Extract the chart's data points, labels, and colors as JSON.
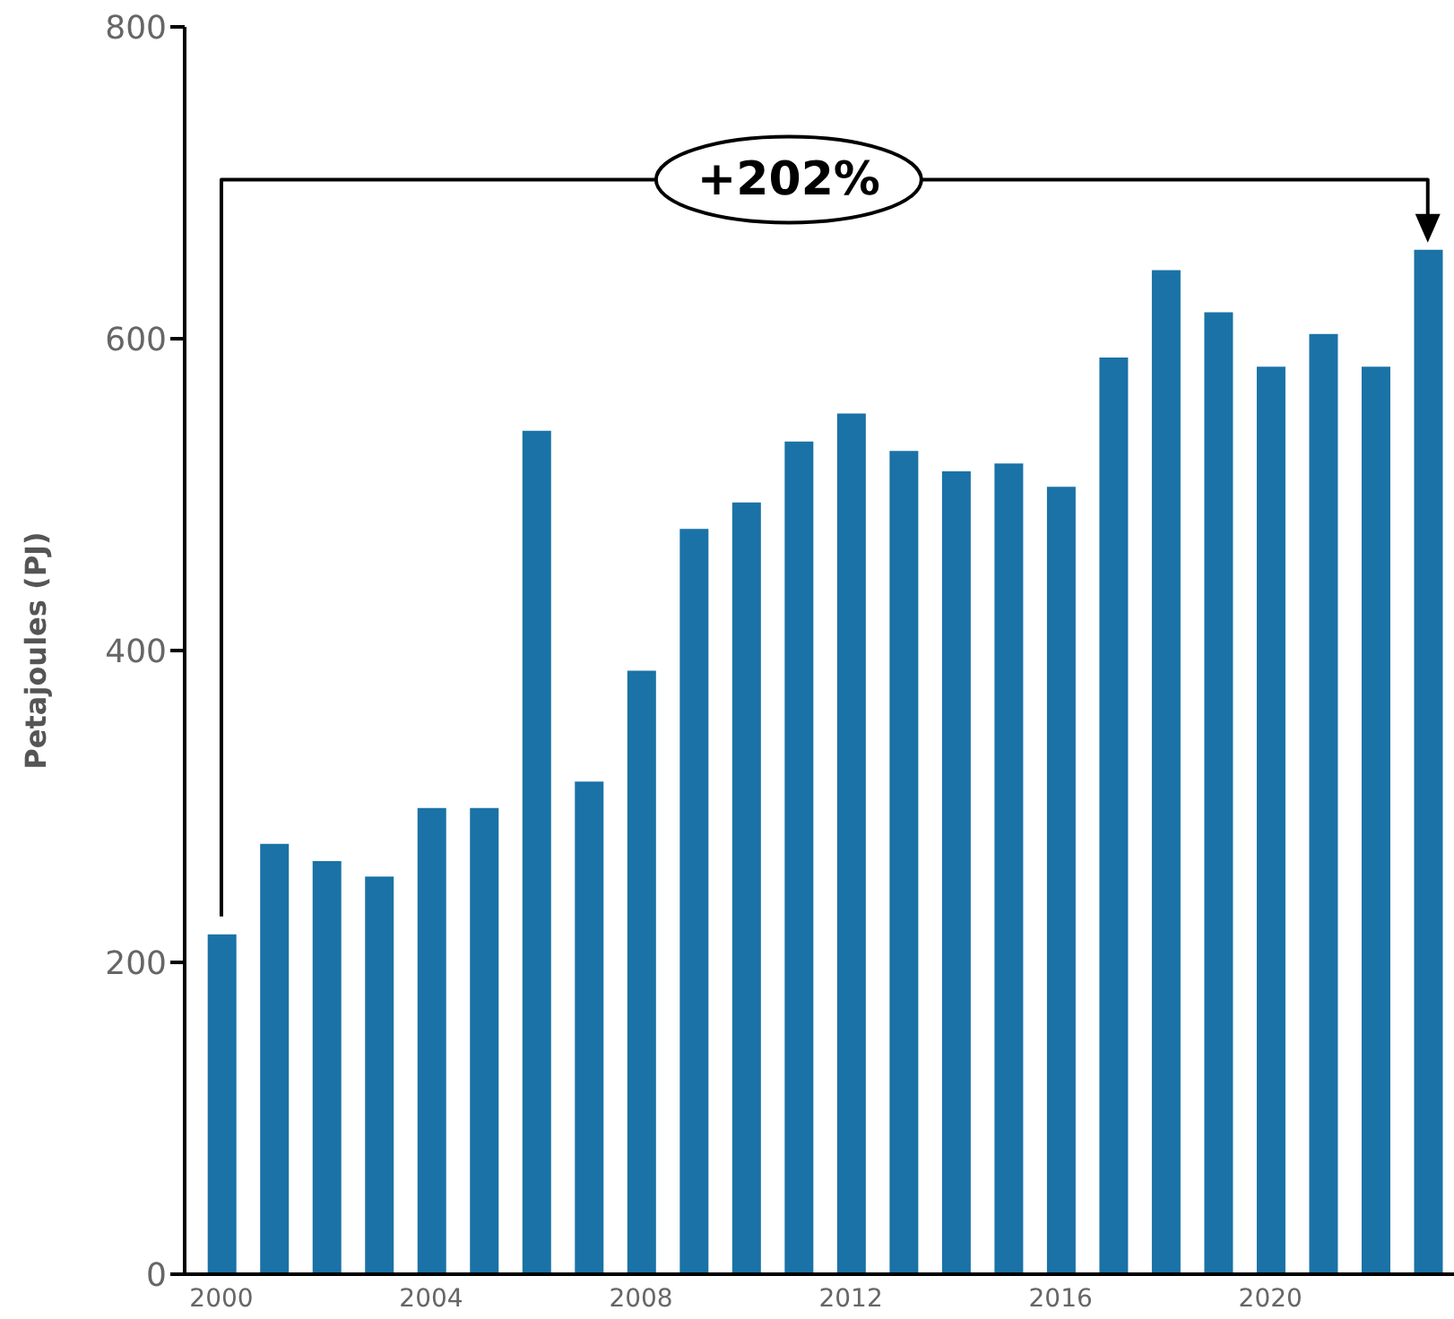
{
  "chart_data": {
    "type": "bar",
    "ylabel": "Petajoules (PJ)",
    "x": [
      2000,
      2001,
      2002,
      2003,
      2004,
      2005,
      2006,
      2007,
      2008,
      2009,
      2010,
      2011,
      2012,
      2013,
      2014,
      2015,
      2016,
      2017,
      2018,
      2019,
      2020,
      2021,
      2022,
      2023
    ],
    "values": [
      218,
      276,
      265,
      255,
      299,
      299,
      541,
      316,
      387,
      478,
      495,
      534,
      552,
      528,
      515,
      520,
      505,
      588,
      644,
      617,
      582,
      603,
      582,
      657
    ],
    "color": "#1a72a6",
    "xlim": [
      1999.3,
      2023.5
    ],
    "xticks": [
      2000,
      2004,
      2008,
      2012,
      2016,
      2020
    ],
    "ylim": [
      0,
      800
    ],
    "yticks": [
      0,
      200,
      400,
      600,
      800
    ],
    "grid": false,
    "annotations": [
      "+202%"
    ]
  }
}
